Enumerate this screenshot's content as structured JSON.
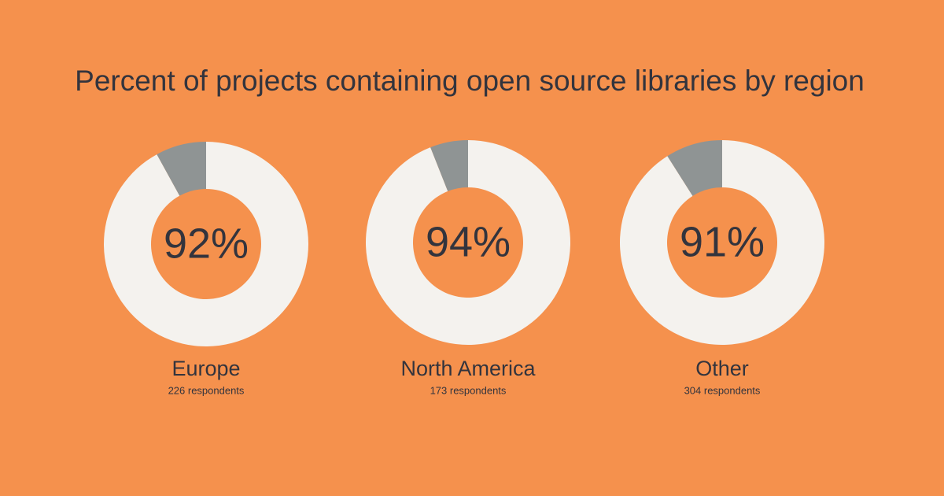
{
  "title": "Percent of projects containing open source libraries by region",
  "background": "#f5914d",
  "text_color": "#33343d",
  "chart_data": [
    {
      "type": "donut",
      "name": "Europe",
      "subtitle": "226 respondents",
      "values": [
        92,
        8
      ],
      "value_labels": [
        "92%",
        null
      ],
      "colors": [
        "#f4f2ee",
        "#8f9494"
      ]
    },
    {
      "type": "donut",
      "name": "North America",
      "subtitle": "173 respondents",
      "values": [
        94,
        6
      ],
      "value_labels": [
        "94%",
        null
      ],
      "colors": [
        "#f4f2ee",
        "#8f9494"
      ]
    },
    {
      "type": "donut",
      "name": "Other",
      "subtitle": "304 respondents",
      "values": [
        91,
        9
      ],
      "value_labels": [
        "91%",
        null
      ],
      "colors": [
        "#f4f2ee",
        "#8f9494"
      ]
    }
  ]
}
